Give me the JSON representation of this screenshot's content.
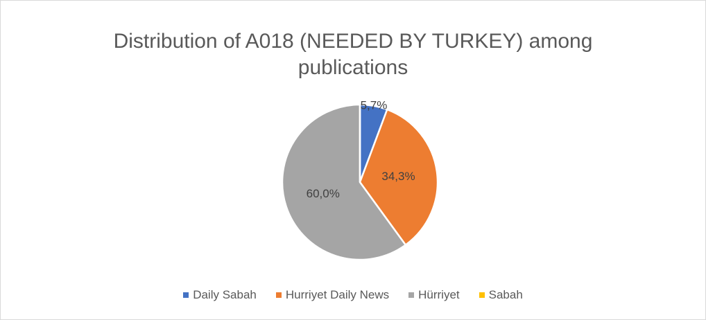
{
  "chart_data": {
    "type": "pie",
    "title": "Distribution of A018 (NEEDED BY TURKEY) among publications",
    "categories": [
      "Daily Sabah",
      "Hurriyet Daily News",
      "Hürriyet",
      "Sabah"
    ],
    "values": [
      5.7,
      34.3,
      60.0,
      0
    ],
    "value_labels": [
      "5,7%",
      "34,3%",
      "60,0%",
      null
    ],
    "colors": [
      "#4472c4",
      "#ed7d31",
      "#a5a5a5",
      "#ffc000"
    ],
    "legend": "bottom"
  }
}
